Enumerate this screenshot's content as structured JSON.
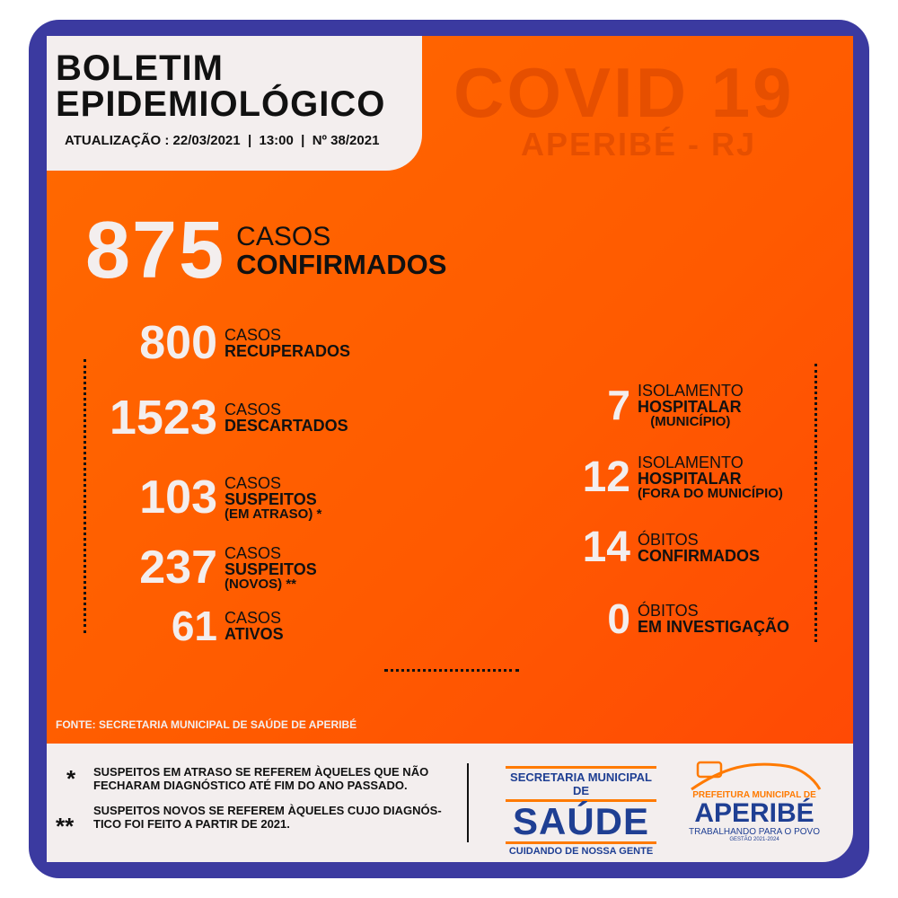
{
  "header": {
    "title_line1": "BOLETIM",
    "title_line2": "EPIDEMIOLÓGICO",
    "subtitle": "ATUALIZAÇÃO : 22/03/2021  |  13:00  |  Nº 38/2021"
  },
  "banner": {
    "title": "COVID 19",
    "place": "APERIBÉ - RJ"
  },
  "main": {
    "value": "875",
    "l1": "CASOS",
    "l2": "CONFIRMADOS"
  },
  "left": [
    {
      "value": "800",
      "l1": "CASOS",
      "l2": "RECUPERADOS"
    },
    {
      "value": "1523",
      "l1": "CASOS",
      "l2": "DESCARTADOS"
    },
    {
      "value": "103",
      "l1": "CASOS",
      "l2": "SUSPEITOS",
      "l3": "(EM ATRASO) *"
    },
    {
      "value": "237",
      "l1": "CASOS",
      "l2": "SUSPEITOS",
      "l3": "(NOVOS) **"
    },
    {
      "value": "61",
      "l1": "CASOS",
      "l2": "ATIVOS"
    }
  ],
  "right": [
    {
      "value": "7",
      "l1": "ISOLAMENTO",
      "l2": "HOSPITALAR",
      "l3": "(MUNICÍPIO)"
    },
    {
      "value": "12",
      "l1": "ISOLAMENTO",
      "l2": "HOSPITALAR",
      "l3": "(FORA DO MUNICÍPIO)"
    },
    {
      "value": "14",
      "l1": "ÓBITOS",
      "l2": "CONFIRMADOS"
    },
    {
      "value": "0",
      "l1": "ÓBITOS",
      "l2": "EM INVESTIGAÇÃO"
    }
  ],
  "source": "FONTE: SECRETARIA MUNICIPAL DE SAÚDE DE APERIBÉ",
  "notes": [
    {
      "mark": "*",
      "text": "SUSPEITOS EM ATRASO SE REFEREM ÀQUELES QUE NÃO FECHARAM DIAGNÓSTICO ATÉ FIM DO ANO PASSADO."
    },
    {
      "mark": "**",
      "text": "SUSPEITOS NOVOS SE REFEREM ÀQUELES CUJO DIAGNÓS-TICO FOI FEITO A PARTIR DE 2021."
    }
  ],
  "logos": {
    "saude": {
      "top": "SECRETARIA MUNICIPAL DE",
      "main": "SAÚDE",
      "bottom": "CUIDANDO DE NOSSA GENTE"
    },
    "prefeitura": {
      "top": "PREFEITURA MUNICIPAL DE",
      "main": "APERIBÉ",
      "slogan": "TRABALHANDO PARA O POVO",
      "term": "GESTÃO 2021-2024"
    }
  },
  "colors": {
    "frame": "#3b3aa0",
    "orange": "#ff5e00",
    "panel": "#f3eeee",
    "logo_blue": "#1f3f93",
    "logo_orange": "#ff7a00"
  }
}
